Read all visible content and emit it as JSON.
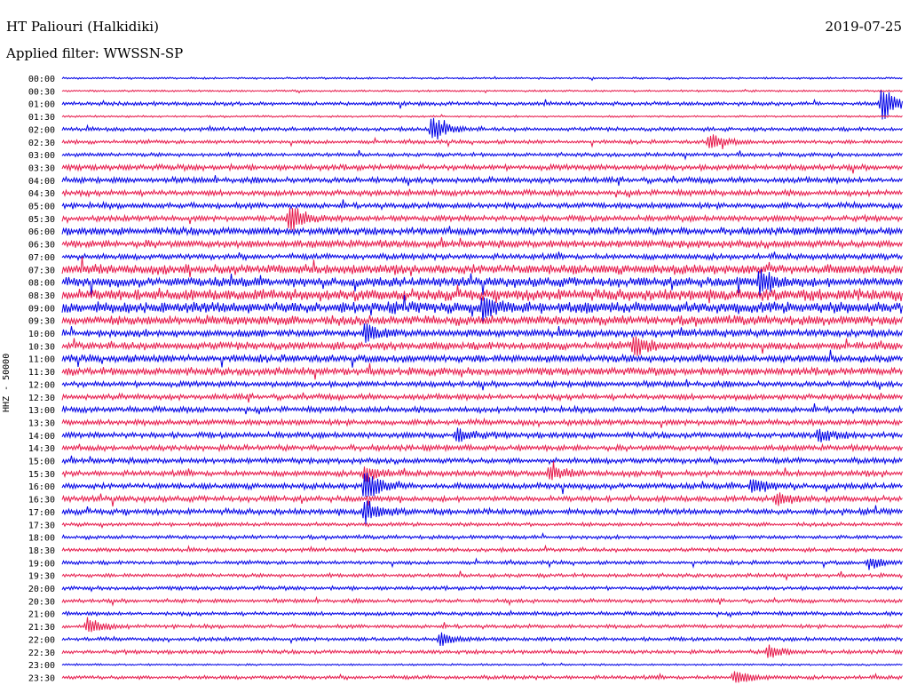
{
  "header": {
    "station": "HT Paliouri (Halkidiki)",
    "date": "2019-07-25",
    "filter": "Applied filter: WWSSN-SP"
  },
  "chart_data": {
    "type": "line",
    "title": "HT Paliouri (Halkidiki)",
    "ylabel": "HHZ - 50000",
    "colors": [
      "#0000e6",
      "#e6194b"
    ],
    "rows": [
      "00:00",
      "00:30",
      "01:00",
      "01:30",
      "02:00",
      "02:30",
      "03:00",
      "03:30",
      "04:00",
      "04:30",
      "05:00",
      "05:30",
      "06:00",
      "06:30",
      "07:00",
      "07:30",
      "08:00",
      "08:30",
      "09:00",
      "09:30",
      "10:00",
      "10:30",
      "11:00",
      "11:30",
      "12:00",
      "12:30",
      "13:00",
      "13:30",
      "14:00",
      "14:30",
      "15:00",
      "15:30",
      "16:00",
      "16:30",
      "17:00",
      "17:30",
      "18:00",
      "18:30",
      "19:00",
      "19:30",
      "20:00",
      "20:30",
      "21:00",
      "21:30",
      "22:00",
      "22:30",
      "23:00",
      "23:30"
    ],
    "noise_level": [
      1,
      1,
      2,
      1,
      2,
      2,
      2,
      3,
      3,
      3,
      3,
      3,
      4,
      4,
      3,
      5,
      5,
      6,
      6,
      5,
      4,
      4,
      4,
      4,
      3,
      3,
      3,
      3,
      3,
      3,
      3,
      3,
      3,
      3,
      3,
      2,
      2,
      2,
      2,
      2,
      2,
      2,
      2,
      2,
      2,
      2,
      1,
      2
    ],
    "events": [
      {
        "row": 2,
        "frac": 0.975,
        "amp": 22
      },
      {
        "row": 4,
        "frac": 0.44,
        "amp": 16
      },
      {
        "row": 5,
        "frac": 0.77,
        "amp": 10
      },
      {
        "row": 11,
        "frac": 0.27,
        "amp": 18
      },
      {
        "row": 16,
        "frac": 0.83,
        "amp": 14
      },
      {
        "row": 18,
        "frac": 0.5,
        "amp": 12
      },
      {
        "row": 20,
        "frac": 0.36,
        "amp": 10
      },
      {
        "row": 21,
        "frac": 0.68,
        "amp": 12
      },
      {
        "row": 28,
        "frac": 0.47,
        "amp": 8
      },
      {
        "row": 28,
        "frac": 0.9,
        "amp": 8
      },
      {
        "row": 31,
        "frac": 0.36,
        "amp": 10
      },
      {
        "row": 31,
        "frac": 0.58,
        "amp": 8
      },
      {
        "row": 32,
        "frac": 0.36,
        "amp": 20
      },
      {
        "row": 32,
        "frac": 0.82,
        "amp": 10
      },
      {
        "row": 33,
        "frac": 0.85,
        "amp": 8
      },
      {
        "row": 34,
        "frac": 0.36,
        "amp": 14
      },
      {
        "row": 38,
        "frac": 0.96,
        "amp": 7
      },
      {
        "row": 43,
        "frac": 0.03,
        "amp": 10
      },
      {
        "row": 44,
        "frac": 0.45,
        "amp": 7
      },
      {
        "row": 45,
        "frac": 0.84,
        "amp": 8
      },
      {
        "row": 47,
        "frac": 0.8,
        "amp": 9
      }
    ]
  }
}
